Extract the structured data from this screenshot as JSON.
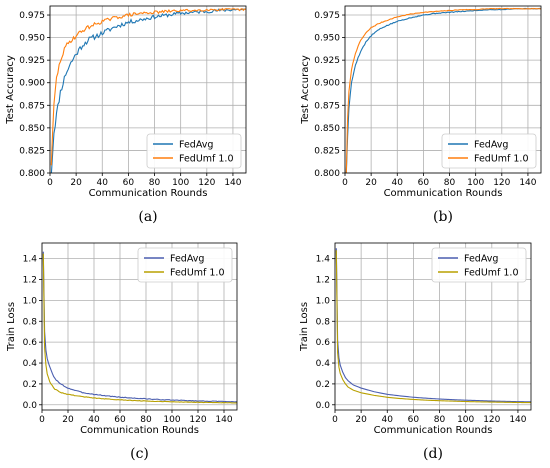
{
  "chart_data": [
    {
      "type": "line",
      "panel_label": "(a)",
      "xlabel": "Communication Rounds",
      "ylabel": "Test Accuracy",
      "xlim": [
        0,
        150
      ],
      "ylim": [
        0.8,
        0.985
      ],
      "xticks": [
        0,
        20,
        40,
        60,
        80,
        100,
        120,
        140
      ],
      "yticks": [
        0.8,
        0.825,
        0.85,
        0.875,
        0.9,
        0.925,
        0.95,
        0.975
      ],
      "ytick_labels": [
        "0.800",
        "0.825",
        "0.850",
        "0.875",
        "0.900",
        "0.925",
        "0.950",
        "0.975"
      ],
      "grid": true,
      "legend_position": "lower-right",
      "series": [
        {
          "name": "FedAvg",
          "color": "#1f77b4",
          "noise": 0.004,
          "seed": 11,
          "x": [
            1,
            3,
            5,
            8,
            12,
            16,
            20,
            25,
            30,
            40,
            50,
            60,
            70,
            80,
            90,
            100,
            110,
            120,
            130,
            140,
            150
          ],
          "y": [
            0.8,
            0.845,
            0.865,
            0.89,
            0.91,
            0.922,
            0.932,
            0.942,
            0.948,
            0.955,
            0.962,
            0.967,
            0.97,
            0.973,
            0.975,
            0.977,
            0.978,
            0.979,
            0.98,
            0.981,
            0.981
          ]
        },
        {
          "name": "FedUmf 1.0",
          "color": "#ff7f0e",
          "noise": 0.003,
          "seed": 29,
          "x": [
            1,
            3,
            5,
            8,
            12,
            16,
            20,
            25,
            30,
            40,
            50,
            60,
            70,
            80,
            90,
            100,
            110,
            120,
            130,
            140,
            150
          ],
          "y": [
            0.81,
            0.875,
            0.905,
            0.925,
            0.94,
            0.947,
            0.952,
            0.958,
            0.962,
            0.968,
            0.972,
            0.975,
            0.977,
            0.978,
            0.979,
            0.98,
            0.98,
            0.981,
            0.981,
            0.981,
            0.981
          ]
        }
      ]
    },
    {
      "type": "line",
      "panel_label": "(b)",
      "xlabel": "Communication Rounds",
      "ylabel": "Test Accuracy",
      "xlim": [
        0,
        150
      ],
      "ylim": [
        0.8,
        0.985
      ],
      "xticks": [
        0,
        20,
        40,
        60,
        80,
        100,
        120,
        140
      ],
      "yticks": [
        0.8,
        0.825,
        0.85,
        0.875,
        0.9,
        0.925,
        0.95,
        0.975
      ],
      "ytick_labels": [
        "0.800",
        "0.825",
        "0.850",
        "0.875",
        "0.900",
        "0.925",
        "0.950",
        "0.975"
      ],
      "grid": true,
      "legend_position": "lower-right",
      "series": [
        {
          "name": "FedAvg",
          "color": "#1f77b4",
          "noise": 0.0008,
          "seed": 5,
          "x": [
            1,
            2,
            3,
            5,
            8,
            12,
            16,
            20,
            25,
            30,
            40,
            50,
            60,
            70,
            80,
            90,
            100,
            110,
            120,
            130,
            140,
            150
          ],
          "y": [
            0.8,
            0.84,
            0.872,
            0.9,
            0.92,
            0.935,
            0.945,
            0.952,
            0.958,
            0.962,
            0.968,
            0.972,
            0.975,
            0.977,
            0.978,
            0.979,
            0.98,
            0.981,
            0.981,
            0.982,
            0.982,
            0.982
          ]
        },
        {
          "name": "FedUmf 1.0",
          "color": "#ff7f0e",
          "noise": 0.0006,
          "seed": 7,
          "x": [
            1,
            2,
            3,
            5,
            8,
            12,
            16,
            20,
            25,
            30,
            40,
            50,
            60,
            70,
            80,
            90,
            100,
            110,
            120,
            130,
            140,
            150
          ],
          "y": [
            0.8,
            0.86,
            0.89,
            0.915,
            0.933,
            0.947,
            0.955,
            0.961,
            0.965,
            0.968,
            0.973,
            0.976,
            0.978,
            0.979,
            0.98,
            0.981,
            0.981,
            0.982,
            0.982,
            0.982,
            0.982,
            0.982
          ]
        }
      ]
    },
    {
      "type": "line",
      "panel_label": "(c)",
      "xlabel": "Communication Rounds",
      "ylabel": "Train Loss",
      "xlim": [
        0,
        150
      ],
      "ylim": [
        -0.05,
        1.55
      ],
      "xticks": [
        0,
        20,
        40,
        60,
        80,
        100,
        120,
        140
      ],
      "yticks": [
        0,
        0.2,
        0.4,
        0.6,
        0.8,
        1.0,
        1.2,
        1.4
      ],
      "ytick_labels": [
        "0.0",
        "0.2",
        "0.4",
        "0.6",
        "0.8",
        "1.0",
        "1.2",
        "1.4"
      ],
      "grid": true,
      "legend_position": "upper-right",
      "series": [
        {
          "name": "FedAvg",
          "color": "#4c5fb0",
          "noise": 0.006,
          "seed": 3,
          "x": [
            1,
            2,
            3,
            4,
            6,
            8,
            10,
            14,
            20,
            30,
            40,
            50,
            60,
            70,
            80,
            90,
            100,
            110,
            120,
            130,
            140,
            150
          ],
          "y": [
            1.47,
            0.7,
            0.52,
            0.44,
            0.36,
            0.3,
            0.25,
            0.2,
            0.16,
            0.12,
            0.1,
            0.085,
            0.073,
            0.064,
            0.057,
            0.05,
            0.045,
            0.041,
            0.037,
            0.034,
            0.031,
            0.029
          ]
        },
        {
          "name": "FedUmf 1.0",
          "color": "#b8a000",
          "noise": 0.004,
          "seed": 9,
          "x": [
            1,
            2,
            3,
            4,
            6,
            8,
            10,
            14,
            20,
            30,
            40,
            50,
            60,
            70,
            80,
            90,
            100,
            110,
            120,
            130,
            140,
            150
          ],
          "y": [
            1.45,
            0.55,
            0.38,
            0.3,
            0.22,
            0.18,
            0.15,
            0.12,
            0.1,
            0.08,
            0.065,
            0.055,
            0.047,
            0.041,
            0.036,
            0.032,
            0.029,
            0.026,
            0.024,
            0.022,
            0.02,
            0.019
          ]
        }
      ]
    },
    {
      "type": "line",
      "panel_label": "(d)",
      "xlabel": "Communication Rounds",
      "ylabel": "Train Loss",
      "xlim": [
        0,
        150
      ],
      "ylim": [
        -0.05,
        1.55
      ],
      "xticks": [
        0,
        20,
        40,
        60,
        80,
        100,
        120,
        140
      ],
      "yticks": [
        0,
        0.2,
        0.4,
        0.6,
        0.8,
        1.0,
        1.2,
        1.4
      ],
      "ytick_labels": [
        "0.0",
        "0.2",
        "0.4",
        "0.6",
        "0.8",
        "1.0",
        "1.2",
        "1.4"
      ],
      "grid": true,
      "legend_position": "upper-right",
      "series": [
        {
          "name": "FedAvg",
          "color": "#4c5fb0",
          "noise": 0,
          "seed": 1,
          "x": [
            1,
            2,
            3,
            4,
            6,
            8,
            10,
            14,
            20,
            30,
            40,
            50,
            60,
            70,
            80,
            90,
            100,
            110,
            120,
            130,
            140,
            150
          ],
          "y": [
            1.5,
            0.62,
            0.45,
            0.38,
            0.31,
            0.26,
            0.23,
            0.19,
            0.16,
            0.125,
            0.1,
            0.085,
            0.072,
            0.063,
            0.055,
            0.049,
            0.044,
            0.04,
            0.036,
            0.033,
            0.03,
            0.028
          ]
        },
        {
          "name": "FedUmf 1.0",
          "color": "#b8a000",
          "noise": 0,
          "seed": 2,
          "x": [
            1,
            2,
            3,
            4,
            6,
            8,
            10,
            14,
            20,
            30,
            40,
            50,
            60,
            70,
            80,
            90,
            100,
            110,
            120,
            130,
            140,
            150
          ],
          "y": [
            1.48,
            0.5,
            0.36,
            0.3,
            0.24,
            0.2,
            0.17,
            0.14,
            0.115,
            0.09,
            0.072,
            0.06,
            0.051,
            0.044,
            0.039,
            0.035,
            0.031,
            0.028,
            0.026,
            0.024,
            0.022,
            0.021
          ]
        }
      ]
    }
  ]
}
